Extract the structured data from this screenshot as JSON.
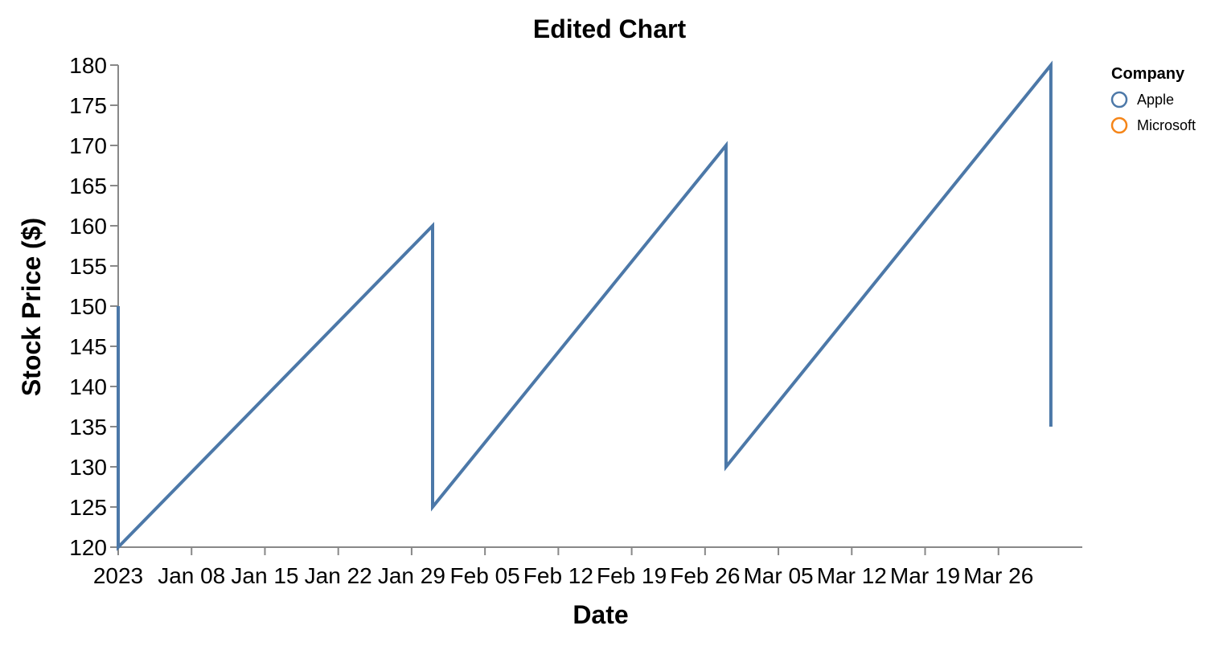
{
  "chart_data": {
    "type": "line",
    "title": "Edited Chart",
    "xlabel": "Date",
    "ylabel": "Stock Price ($)",
    "ylim": [
      120,
      180
    ],
    "xlim": [
      "2023-01-01",
      "2023-04-03"
    ],
    "y_ticks": [
      120,
      125,
      130,
      135,
      140,
      145,
      150,
      155,
      160,
      165,
      170,
      175,
      180
    ],
    "x_ticks": [
      {
        "date": "2023-01-01",
        "label": "2023"
      },
      {
        "date": "2023-01-08",
        "label": "Jan 08"
      },
      {
        "date": "2023-01-15",
        "label": "Jan 15"
      },
      {
        "date": "2023-01-22",
        "label": "Jan 22"
      },
      {
        "date": "2023-01-29",
        "label": "Jan 29"
      },
      {
        "date": "2023-02-05",
        "label": "Feb 05"
      },
      {
        "date": "2023-02-12",
        "label": "Feb 12"
      },
      {
        "date": "2023-02-19",
        "label": "Feb 19"
      },
      {
        "date": "2023-02-26",
        "label": "Feb 26"
      },
      {
        "date": "2023-03-05",
        "label": "Mar 05"
      },
      {
        "date": "2023-03-12",
        "label": "Mar 12"
      },
      {
        "date": "2023-03-19",
        "label": "Mar 19"
      },
      {
        "date": "2023-03-26",
        "label": "Mar 26"
      }
    ],
    "grid": false,
    "legend": {
      "title": "Company",
      "placement": "top-right",
      "entries": [
        {
          "name": "Apple",
          "color": "#4c78a8"
        },
        {
          "name": "Microsoft",
          "color": "#f58518"
        }
      ]
    },
    "series": [
      {
        "name": "Apple",
        "color": "#4c78a8",
        "points": [
          {
            "x": "2023-01-01",
            "y": 150
          },
          {
            "x": "2023-01-01",
            "y": 120
          },
          {
            "x": "2023-01-31",
            "y": 160
          },
          {
            "x": "2023-01-31",
            "y": 125
          },
          {
            "x": "2023-02-28",
            "y": 170
          },
          {
            "x": "2023-02-28",
            "y": 130
          },
          {
            "x": "2023-03-31",
            "y": 180
          },
          {
            "x": "2023-03-31",
            "y": 135
          }
        ]
      }
    ]
  }
}
